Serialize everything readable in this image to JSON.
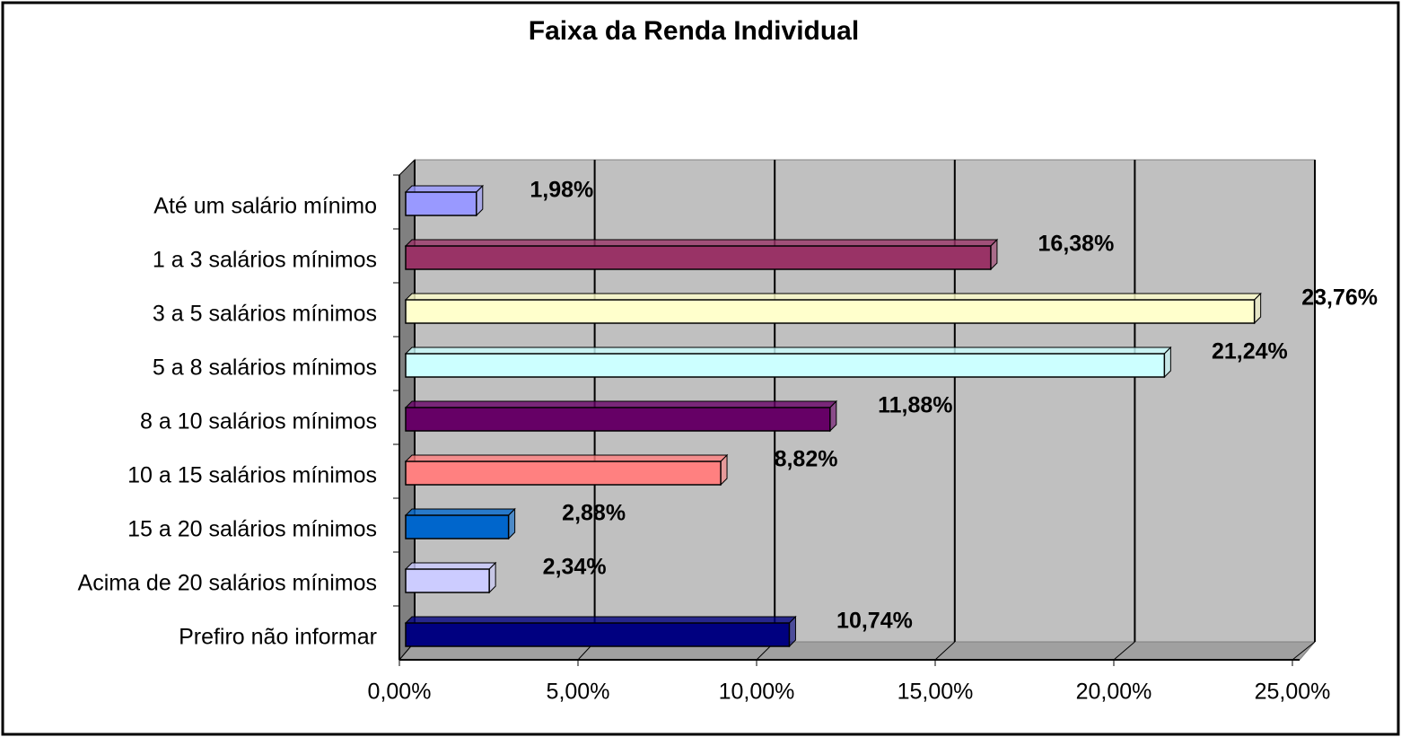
{
  "chart_data": {
    "type": "bar",
    "orientation": "horizontal",
    "title": "Faixa da Renda Individual",
    "categories": [
      "Até um salário mínimo",
      "1 a 3 salários mínimos",
      "3 a 5 salários mínimos",
      "5 a 8 salários mínimos",
      "8 a 10 salários mínimos",
      "10 a 15 salários mínimos",
      "15 a 20 salários mínimos",
      "Acima de 20 salários mínimos",
      "Prefiro não informar"
    ],
    "values": [
      1.98,
      16.38,
      23.76,
      21.24,
      11.88,
      8.82,
      2.88,
      2.34,
      10.74
    ],
    "value_labels": [
      "1,98%",
      "16,38%",
      "23,76%",
      "21,24%",
      "11,88%",
      "8,82%",
      "2,88%",
      "2,34%",
      "10,74%"
    ],
    "colors": [
      "#9999ff",
      "#993366",
      "#ffffcc",
      "#ccffff",
      "#660066",
      "#ff8080",
      "#0066cc",
      "#ccccff",
      "#000080"
    ],
    "xlim": [
      0,
      25
    ],
    "xticks": [
      {
        "value": 0,
        "label": "0,00%"
      },
      {
        "value": 5,
        "label": "5,00%"
      },
      {
        "value": 10,
        "label": "10,00%"
      },
      {
        "value": 15,
        "label": "15,00%"
      },
      {
        "value": 20,
        "label": "20,00%"
      },
      {
        "value": 25,
        "label": "25,00%"
      }
    ],
    "grid": true
  }
}
